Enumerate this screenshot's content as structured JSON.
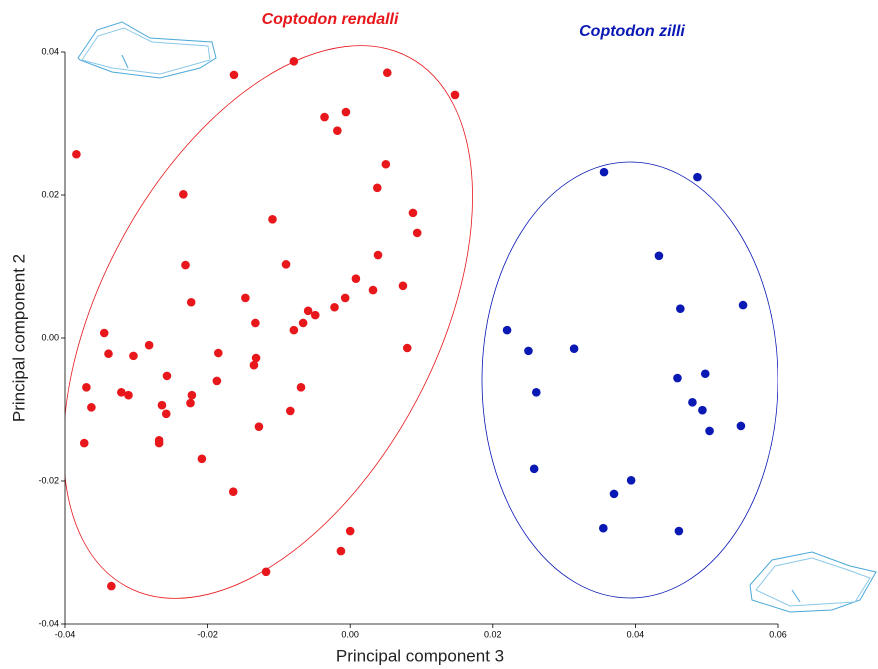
{
  "chart_data": {
    "type": "scatter",
    "x_label": "Principal component 3",
    "y_label": "Principal component 2",
    "xlim": [
      -0.04,
      0.06
    ],
    "ylim": [
      -0.04,
      0.04
    ],
    "xticks": [
      -0.04,
      -0.02,
      {
        "value": 0,
        "label": "0.00"
      },
      0.02,
      0.04,
      0.06
    ],
    "yticks": [
      -0.04,
      -0.02,
      {
        "value": 0,
        "label": "0.00"
      },
      0.02,
      0.04
    ],
    "series": [
      {
        "name": "Coptodon rendalli",
        "color": "#e8171b",
        "x": [
          -0.0384,
          -0.0163,
          -0.0079,
          0.0052,
          0.0147,
          -0.0036,
          -0.0018,
          -0.0006,
          0.005,
          0.0038,
          -0.0234,
          0.0088,
          0.0094,
          -0.0109,
          -0.0231,
          -0.009,
          0.0039,
          0.0008,
          -0.0147,
          -0.0223,
          -0.0007,
          -0.0022,
          0.0032,
          0.0074,
          -0.0059,
          -0.0049,
          -0.0066,
          -0.0079,
          -0.0133,
          -0.0345,
          -0.0282,
          0.008,
          -0.0339,
          -0.0304,
          -0.0185,
          -0.0132,
          -0.0135,
          -0.037,
          -0.0257,
          -0.0187,
          -0.0069,
          -0.0321,
          -0.0311,
          -0.0222,
          -0.0224,
          -0.0363,
          -0.0264,
          -0.0258,
          -0.0084,
          -0.0128,
          -0.0373,
          -0.0268,
          -0.0268,
          -0.0208,
          -0.0164,
          0.0,
          -0.0013,
          -0.0118,
          -0.0335
        ],
        "values": [
          0.0257,
          0.0368,
          0.0387,
          0.0371,
          0.034,
          0.0309,
          0.029,
          0.0316,
          0.0243,
          0.021,
          0.0201,
          0.0175,
          0.0147,
          0.0166,
          0.0102,
          0.0103,
          0.0116,
          0.0083,
          0.0056,
          0.005,
          0.0056,
          0.0043,
          0.0067,
          0.0073,
          0.0038,
          0.0032,
          0.0021,
          0.0011,
          0.0021,
          0.0007,
          -0.001,
          -0.0014,
          -0.0022,
          -0.0025,
          -0.0021,
          -0.0028,
          -0.0038,
          -0.0069,
          -0.0053,
          -0.006,
          -0.0069,
          -0.0076,
          -0.008,
          -0.008,
          -0.0091,
          -0.0097,
          -0.0094,
          -0.0106,
          -0.0102,
          -0.0124,
          -0.0147,
          -0.0143,
          -0.0147,
          -0.0169,
          -0.0215,
          -0.027,
          -0.0298,
          -0.0327,
          -0.0347
        ]
      },
      {
        "name": "Coptodon zilli",
        "color": "#0a18b4",
        "x": [
          0.0356,
          0.0487,
          0.0433,
          0.022,
          0.025,
          0.0314,
          0.0463,
          0.0551,
          0.0261,
          0.0459,
          0.0498,
          0.048,
          0.0494,
          0.0504,
          0.0548,
          0.0258,
          0.037,
          0.0394,
          0.0355,
          0.0461
        ],
        "values": [
          0.0232,
          0.0225,
          0.0115,
          0.0011,
          -0.0018,
          -0.0015,
          0.0041,
          0.0046,
          -0.0076,
          -0.0056,
          -0.005,
          -0.009,
          -0.0101,
          -0.013,
          -0.0123,
          -0.0183,
          -0.0218,
          -0.0199,
          -0.0266,
          -0.027
        ]
      }
    ]
  }
}
